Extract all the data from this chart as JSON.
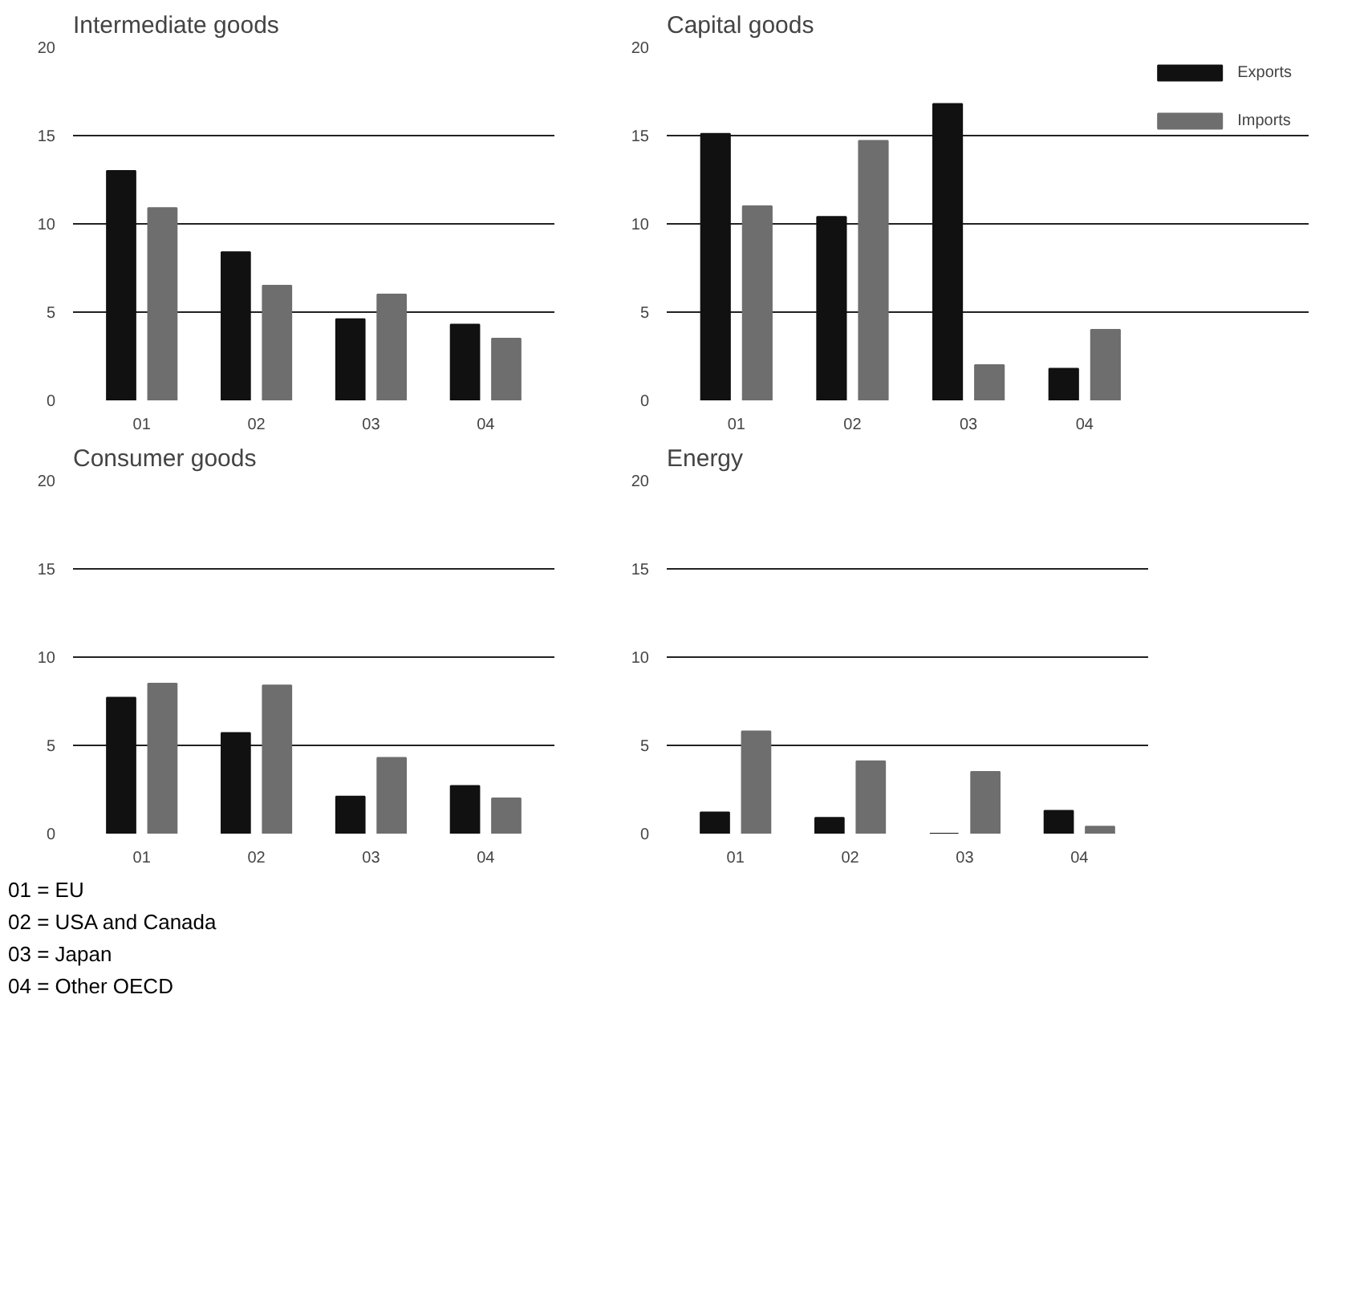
{
  "chart_data": [
    {
      "type": "bar",
      "title": "Intermediate goods",
      "categories": [
        "01",
        "02",
        "03",
        "04"
      ],
      "series": [
        {
          "color": "#111111",
          "values": [
            13.0,
            8.4,
            4.6,
            4.3
          ]
        },
        {
          "color": "#6e6e6e",
          "values": [
            10.9,
            6.5,
            6.0,
            3.5
          ]
        }
      ],
      "ylim": [
        0,
        20
      ],
      "yticks": [
        0,
        5,
        10,
        15,
        20
      ],
      "grid": "y"
    },
    {
      "type": "bar",
      "title": "Consumer goods",
      "categories": [
        "01",
        "02",
        "03",
        "04"
      ],
      "series": [
        {
          "color": "#111111",
          "values": [
            7.7,
            5.7,
            2.1,
            2.7
          ]
        },
        {
          "color": "#6e6e6e",
          "values": [
            8.5,
            8.4,
            4.3,
            2.0
          ]
        }
      ],
      "ylim": [
        0,
        20
      ],
      "yticks": [
        0,
        5,
        10,
        15,
        20
      ],
      "grid": "y",
      "annotations": [
        "01 = EU",
        "02 = USA and Canada",
        "03 = Japan",
        "04 = Other OECD"
      ]
    },
    {
      "type": "bar",
      "title": "Capital goods",
      "categories": [
        "01",
        "02",
        "03",
        "04"
      ],
      "series": [
        {
          "name": "Exports",
          "color": "#111111",
          "values": [
            15.1,
            10.4,
            16.8,
            1.8
          ]
        },
        {
          "name": "Imports",
          "color": "#6e6e6e",
          "values": [
            11.0,
            14.7,
            2.0,
            4.0
          ]
        }
      ],
      "ylim": [
        0,
        20
      ],
      "yticks": [
        0,
        5,
        10,
        15,
        20
      ],
      "grid": "y",
      "legend": "right"
    },
    {
      "type": "bar",
      "title": "Energy",
      "categories": [
        "01",
        "02",
        "03",
        "04"
      ],
      "series": [
        {
          "color": "#111111",
          "values": [
            1.2,
            0.9,
            0,
            1.3
          ]
        },
        {
          "color": "#6e6e6e",
          "values": [
            5.8,
            4.1,
            3.5,
            0.4
          ]
        }
      ],
      "ylim": [
        0,
        20
      ],
      "yticks": [
        0,
        5,
        10,
        15,
        20
      ],
      "grid": "y"
    }
  ]
}
